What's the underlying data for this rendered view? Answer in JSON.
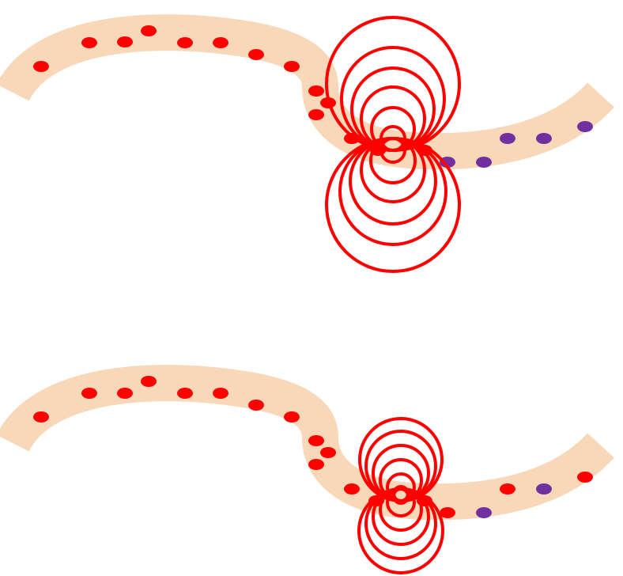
{
  "colors": {
    "background": "#ffffff",
    "fiber": "#f9d7b9",
    "depolarized_dot": "#ff0000",
    "resting_dot": "#7030a0",
    "field_line": "#ff0000"
  },
  "panels": [
    {
      "id": "top",
      "stage": "earlier",
      "depolarized_dot_count": 14,
      "resting_dot_count": 4,
      "field_loop_count_above": 6,
      "field_loop_count_below": 6
    },
    {
      "id": "bottom",
      "stage": "later",
      "depolarized_dot_count": 16,
      "resting_dot_count": 2,
      "field_loop_count_above": 6,
      "field_loop_count_below": 6
    }
  ]
}
